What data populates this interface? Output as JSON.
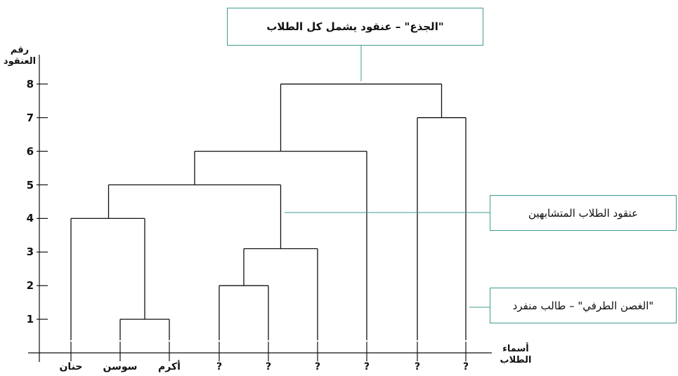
{
  "annotations": {
    "root": "\"الجذع\" – عنقود يشمل كل الطلاب",
    "cluster": "عنقود الطلاب المتشابهين",
    "leaf": "\"الغصن الطرفي\" – طالب منفرد"
  },
  "axes": {
    "y_title_line1": "رقم",
    "y_title_line2": "العنقود",
    "x_title_line1": "أسماء",
    "x_title_line2": "الطلاب",
    "y_ticks": [
      "1",
      "2",
      "3",
      "4",
      "5",
      "6",
      "7",
      "8"
    ]
  },
  "leaves": [
    "حنان",
    "سوسن",
    "أكرم",
    "?",
    "?",
    "?",
    "?",
    "?",
    "?"
  ],
  "colors": {
    "callout_border": "#3f9b8f",
    "connector": "#3f9b8f",
    "lines": "#111111"
  },
  "chart_data": {
    "type": "dendrogram",
    "leaves": [
      "حنان",
      "سوسن",
      "أكرم",
      "?",
      "?",
      "?",
      "?",
      "?",
      "?"
    ],
    "merges": [
      {
        "left": "سوسن",
        "right": "أكرم",
        "height": 1
      },
      {
        "left": "? (4)",
        "right": "? (5)",
        "height": 2
      },
      {
        "left": "cluster height 2",
        "right": "? (6)",
        "height": 3.1
      },
      {
        "left": "حنان",
        "right": "cluster height 1",
        "height": 4
      },
      {
        "left": "cluster height 4",
        "right": "cluster height 3.1",
        "height": 5
      },
      {
        "left": "cluster height 5",
        "right": "? (7)",
        "height": 6
      },
      {
        "left": "? (8)",
        "right": "? (9)",
        "height": 7
      },
      {
        "left": "cluster height 6",
        "right": "cluster height 7",
        "height": 8
      }
    ],
    "ylim": [
      0,
      8
    ]
  }
}
